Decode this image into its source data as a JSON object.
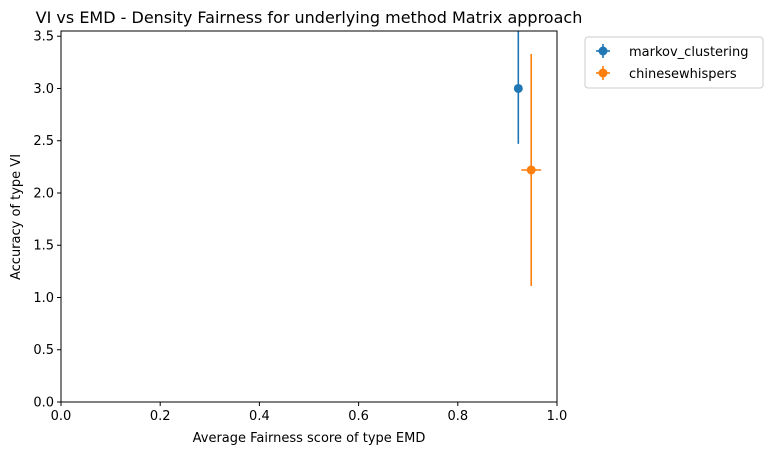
{
  "chart_data": {
    "type": "scatter",
    "title": "VI vs EMD - Density Fairness for underlying method Matrix approach",
    "xlabel": "Average Fairness score of type EMD",
    "ylabel": "Accuracy of type VI",
    "xlim": [
      0.0,
      1.0
    ],
    "ylim": [
      0.0,
      3.55
    ],
    "x_ticks": [
      "0.0",
      "0.2",
      "0.4",
      "0.6",
      "0.8",
      "1.0"
    ],
    "y_ticks": [
      "0.0",
      "0.5",
      "1.0",
      "1.5",
      "2.0",
      "2.5",
      "3.0",
      "3.5"
    ],
    "grid": false,
    "legend_position": "outside-top-right",
    "series": [
      {
        "name": "markov_clustering",
        "color": "#1f77b4",
        "x": 0.922,
        "y": 3.0,
        "xerr": 0.0,
        "yerr_low": 0.53,
        "yerr_high": 0.6
      },
      {
        "name": "chinesewhispers",
        "color": "#ff7f0e",
        "x": 0.948,
        "y": 2.22,
        "xerr": 0.02,
        "yerr_low": 1.11,
        "yerr_high": 1.11
      }
    ]
  }
}
